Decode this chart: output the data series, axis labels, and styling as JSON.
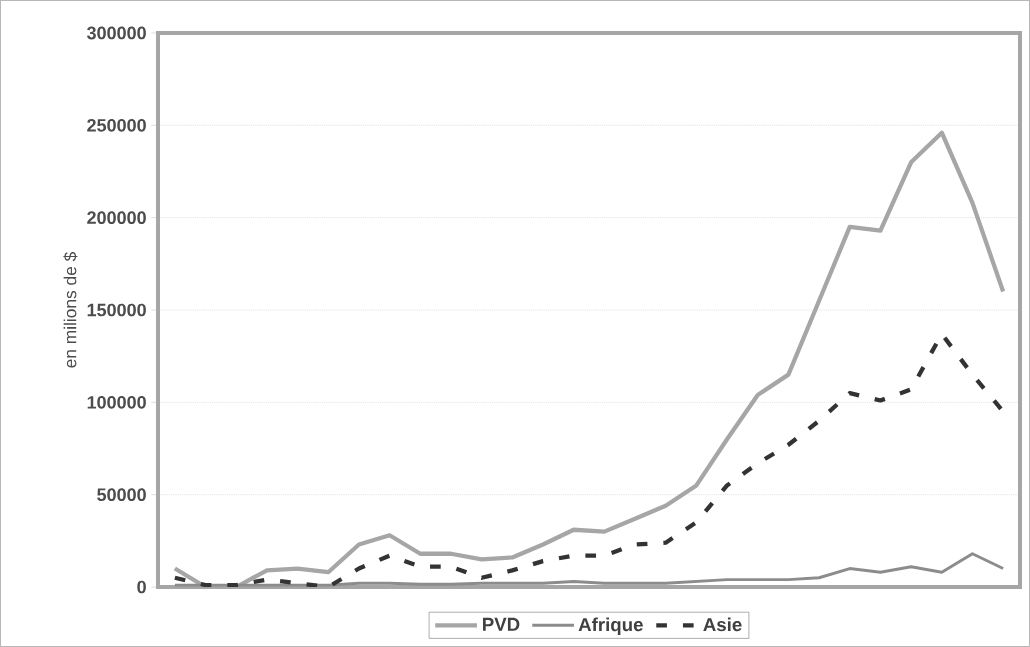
{
  "chart_data": {
    "type": "line",
    "ylabel": "en milions de $",
    "categories": [
      null,
      null,
      null,
      null,
      null,
      null,
      null,
      null,
      null,
      null,
      null,
      null,
      null,
      null,
      null,
      null,
      null,
      null,
      null,
      null,
      null,
      null,
      null,
      null,
      null,
      null,
      null,
      null
    ],
    "series": [
      {
        "name": "PVD",
        "color": "#a6a6a6",
        "line_style": "solid",
        "values": [
          10000,
          0,
          0,
          9000,
          10000,
          8000,
          23000,
          28000,
          18000,
          18000,
          15000,
          16000,
          23000,
          31000,
          30000,
          37000,
          44000,
          55000,
          80000,
          104000,
          115000,
          155000,
          195000,
          193000,
          230000,
          246000,
          208000,
          160000
        ]
      },
      {
        "name": "Afrique",
        "color": "#8c8c8c",
        "line_style": "solid",
        "values": [
          1000,
          1000,
          1000,
          1000,
          1000,
          1000,
          2000,
          2000,
          1500,
          1500,
          2000,
          2000,
          2000,
          3000,
          2000,
          2000,
          2000,
          3000,
          4000,
          4000,
          4000,
          5000,
          10000,
          8000,
          11000,
          8000,
          18000,
          10000
        ]
      },
      {
        "name": "Asie",
        "color": "#333333",
        "line_style": "dashed",
        "values": [
          5000,
          1000,
          1000,
          4000,
          2000,
          0,
          10000,
          17000,
          11000,
          11000,
          5000,
          9000,
          14000,
          17000,
          17000,
          23000,
          24000,
          35000,
          55000,
          67000,
          77000,
          90000,
          105000,
          101000,
          107000,
          137000,
          115000,
          95000
        ]
      }
    ],
    "ylim": [
      0,
      300000
    ],
    "yticks": [
      0,
      50000,
      100000,
      150000,
      200000,
      250000,
      300000
    ],
    "grid": "y",
    "legend": "bottom",
    "marker": "none"
  }
}
